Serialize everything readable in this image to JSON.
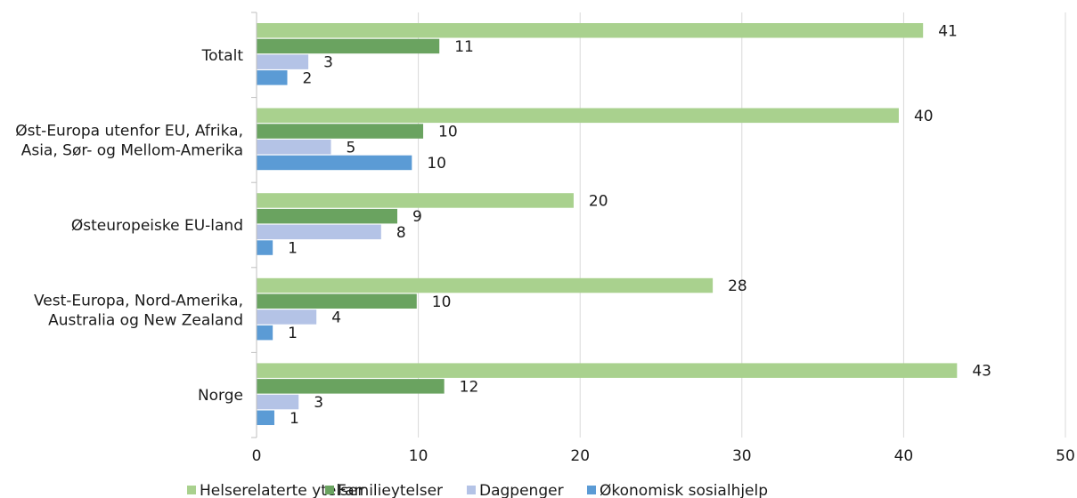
{
  "chart_data": {
    "type": "bar",
    "orientation": "horizontal",
    "categories": [
      "Totalt",
      "Øst-Europa utenfor EU, Afrika, Asia, Sør- og Mellom-Amerika",
      "Østeuropeiske EU-land",
      "Vest-Europa, Nord-Amerika, Australia og New Zealand",
      "Norge"
    ],
    "category_lines": [
      [
        "Totalt"
      ],
      [
        "Øst-Europa utenfor EU, Afrika,",
        "Asia, Sør- og Mellom-Amerika"
      ],
      [
        "Østeuropeiske EU-land"
      ],
      [
        "Vest-Europa, Nord-Amerika,",
        "Australia og New Zealand"
      ],
      [
        "Norge"
      ]
    ],
    "series": [
      {
        "name": "Helserelaterte ytelser",
        "color": "#a9d18e",
        "values": [
          41.2,
          39.7,
          19.6,
          28.2,
          43.3
        ],
        "labels": [
          "41",
          "40",
          "20",
          "28",
          "43"
        ]
      },
      {
        "name": "Familieytelser",
        "color": "#6aa360",
        "values": [
          11.3,
          10.3,
          8.7,
          9.9,
          11.6
        ],
        "labels": [
          "11",
          "10",
          "9",
          "10",
          "12"
        ]
      },
      {
        "name": "Dagpenger",
        "color": "#b4c3e6",
        "values": [
          3.2,
          4.6,
          7.7,
          3.7,
          2.6
        ],
        "labels": [
          "3",
          "5",
          "8",
          "4",
          "3"
        ]
      },
      {
        "name": "Økonomisk sosialhjelp",
        "color": "#5b9bd5",
        "values": [
          1.9,
          9.6,
          1.0,
          1.0,
          1.1
        ],
        "labels": [
          "2",
          "10",
          "1",
          "1",
          "1"
        ]
      }
    ],
    "xlim": [
      0,
      50
    ],
    "xticks": [
      "0",
      "10",
      "20",
      "30",
      "40",
      "50"
    ],
    "grid": "vertical",
    "legend_position": "bottom"
  }
}
